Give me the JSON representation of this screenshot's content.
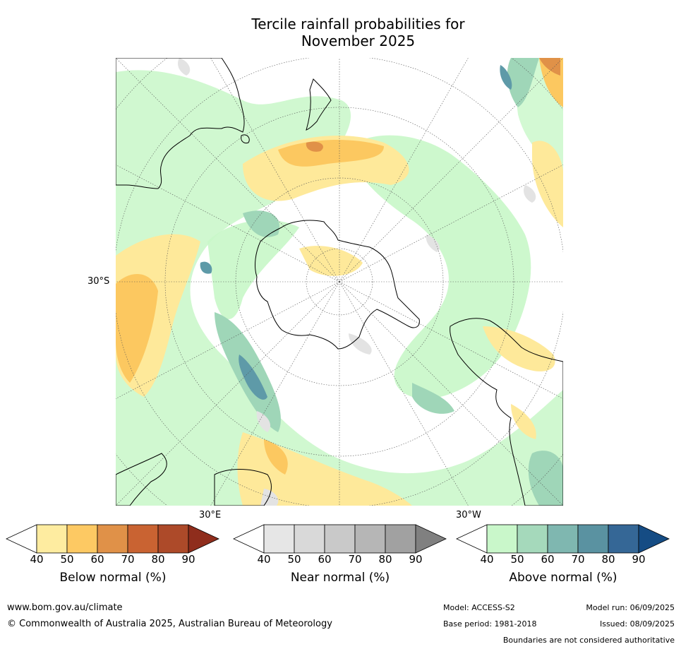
{
  "title_line1": "Tercile rainfall probabilities for",
  "title_line2": "November 2025",
  "map": {
    "lat_label": "30°S",
    "lon_label_east": "30°E",
    "lon_label_west": "30°W",
    "colors": {
      "land_outline": "#000000",
      "below_light": "#fee99a",
      "below_mid": "#fcc860",
      "above_light": "#c8f7c8",
      "above_mid": "#a0d8b8",
      "above_dark": "#5f9aa8",
      "near_light": "#e3e3e3"
    }
  },
  "legends": [
    {
      "title": "Below normal (%)",
      "ticks": [
        "40",
        "50",
        "60",
        "70",
        "80",
        "90"
      ],
      "colors": [
        "#ffffff",
        "#feeca0",
        "#fdc963",
        "#e09148",
        "#c96332",
        "#ad4a29",
        "#8f2d1c"
      ]
    },
    {
      "title": "Near normal (%)",
      "ticks": [
        "40",
        "50",
        "60",
        "70",
        "80",
        "90"
      ],
      "colors": [
        "#ffffff",
        "#e6e6e6",
        "#d9d9d9",
        "#c9c9c9",
        "#b6b6b6",
        "#a1a1a1",
        "#808080"
      ]
    },
    {
      "title": "Above normal (%)",
      "ticks": [
        "40",
        "50",
        "60",
        "70",
        "80",
        "90"
      ],
      "colors": [
        "#ffffff",
        "#c9f7ca",
        "#a5d9bb",
        "#7fb7b0",
        "#5a92a1",
        "#356796",
        "#154c84"
      ]
    }
  ],
  "footer": {
    "website": "www.bom.gov.au/climate",
    "copyright": "© Commonwealth of Australia 2025, Australian Bureau of Meteorology",
    "model": "Model: ACCESS-S2",
    "base_period": "Base period: 1981-2018",
    "model_run": "Model run: 06/09/2025",
    "issued": "Issued: 08/09/2025",
    "boundaries": "Boundaries are not considered authoritative"
  }
}
